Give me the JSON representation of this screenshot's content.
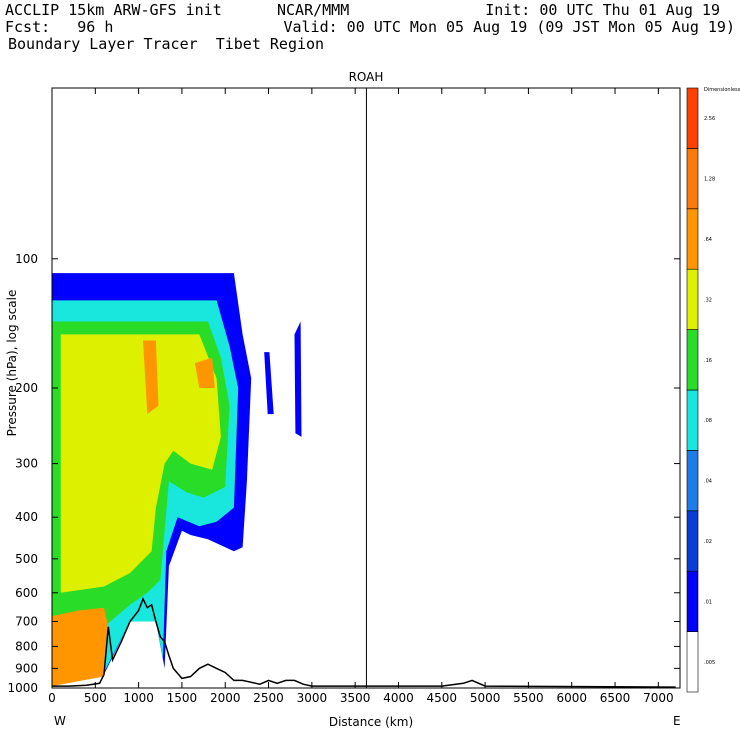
{
  "header": {
    "model": "ACCLIP 15km ARW-GFS init",
    "org": "NCAR/MMM",
    "init": "Init: 00 UTC Thu 01 Aug 19",
    "fcst": "Fcst:   96 h",
    "valid": "Valid: 00 UTC Mon 05 Aug 19 (09 JST Mon 05 Aug 19)",
    "field": "Boundary Layer Tracer  Tibet Region"
  },
  "chart_data": {
    "type": "filled-contour",
    "title": "ROAH",
    "xlabel": "Distance (km)",
    "ylabel": "Pressure (hPa), log scale",
    "x_start_label": "W",
    "x_end_label": "E",
    "xlim": [
      0,
      7250
    ],
    "ylim_hpa": [
      1000,
      40
    ],
    "y_scale": "log",
    "x_ticks": [
      "0",
      "500",
      "1000",
      "1500",
      "2000",
      "2500",
      "3000",
      "3500",
      "4000",
      "4500",
      "5000",
      "5500",
      "6000",
      "6500",
      "7000"
    ],
    "y_ticks": [
      "100",
      "200",
      "300",
      "400",
      "500",
      "600",
      "700",
      "800",
      "900",
      "1000"
    ],
    "vertical_marker_km": 3630,
    "colorbar": {
      "unit_label": "Dimensionless",
      "levels": [
        ".005",
        ".01",
        ".02",
        ".04",
        ".08",
        ".16",
        ".32",
        ".64",
        "1.28",
        "2.56"
      ],
      "colors": [
        "#ffffff",
        "#0000ff",
        "#0a3cd8",
        "#1e7ce6",
        "#19e6dc",
        "#28dc28",
        "#dcf000",
        "#ff9600",
        "#ff780a",
        "#ff4000"
      ]
    },
    "terrain_profile_km_hpa": [
      [
        0,
        990
      ],
      [
        200,
        990
      ],
      [
        400,
        985
      ],
      [
        550,
        975
      ],
      [
        600,
        930
      ],
      [
        650,
        720
      ],
      [
        700,
        860
      ],
      [
        800,
        780
      ],
      [
        900,
        700
      ],
      [
        1000,
        660
      ],
      [
        1050,
        620
      ],
      [
        1100,
        650
      ],
      [
        1150,
        640
      ],
      [
        1200,
        700
      ],
      [
        1250,
        760
      ],
      [
        1300,
        780
      ],
      [
        1350,
        840
      ],
      [
        1400,
        900
      ],
      [
        1500,
        950
      ],
      [
        1600,
        940
      ],
      [
        1700,
        900
      ],
      [
        1800,
        880
      ],
      [
        1900,
        900
      ],
      [
        2000,
        920
      ],
      [
        2100,
        960
      ],
      [
        2200,
        960
      ],
      [
        2400,
        980
      ],
      [
        2500,
        960
      ],
      [
        2600,
        975
      ],
      [
        2700,
        960
      ],
      [
        2800,
        960
      ],
      [
        2900,
        980
      ],
      [
        3000,
        990
      ],
      [
        3500,
        990
      ],
      [
        4000,
        990
      ],
      [
        4500,
        990
      ],
      [
        4750,
        975
      ],
      [
        4850,
        960
      ],
      [
        5000,
        990
      ],
      [
        7200,
        995
      ]
    ],
    "tracer_regions": [
      {
        "level": ".01",
        "polygon_km_hpa": [
          [
            0,
            108
          ],
          [
            2100,
            108
          ],
          [
            2200,
            150
          ],
          [
            2300,
            190
          ],
          [
            2250,
            330
          ],
          [
            2200,
            470
          ],
          [
            2100,
            480
          ],
          [
            1800,
            450
          ],
          [
            1600,
            440
          ],
          [
            1500,
            430
          ],
          [
            1350,
            520
          ],
          [
            1300,
            900
          ],
          [
            1200,
            700
          ],
          [
            900,
            700
          ],
          [
            600,
            930
          ],
          [
            0,
            990
          ]
        ]
      },
      {
        "level": ".01",
        "polygon_km_hpa": [
          [
            2450,
            165
          ],
          [
            2510,
            165
          ],
          [
            2560,
            230
          ],
          [
            2490,
            230
          ]
        ]
      },
      {
        "level": ".01",
        "polygon_km_hpa": [
          [
            2800,
            150
          ],
          [
            2870,
            140
          ],
          [
            2880,
            260
          ],
          [
            2810,
            255
          ]
        ]
      },
      {
        "level": ".08",
        "polygon_km_hpa": [
          [
            0,
            125
          ],
          [
            1900,
            125
          ],
          [
            2050,
            160
          ],
          [
            2150,
            200
          ],
          [
            2100,
            380
          ],
          [
            1900,
            410
          ],
          [
            1700,
            420
          ],
          [
            1450,
            400
          ],
          [
            1320,
            480
          ],
          [
            1280,
            850
          ],
          [
            1200,
            700
          ],
          [
            900,
            700
          ],
          [
            600,
            920
          ],
          [
            0,
            985
          ]
        ]
      },
      {
        "level": ".16",
        "polygon_km_hpa": [
          [
            0,
            140
          ],
          [
            1800,
            140
          ],
          [
            1950,
            170
          ],
          [
            2050,
            220
          ],
          [
            2000,
            340
          ],
          [
            1750,
            360
          ],
          [
            1550,
            350
          ],
          [
            1350,
            330
          ],
          [
            1250,
            560
          ],
          [
            1100,
            600
          ],
          [
            900,
            640
          ],
          [
            600,
            720
          ],
          [
            0,
            760
          ]
        ]
      },
      {
        "level": ".32",
        "polygon_km_hpa": [
          [
            100,
            150
          ],
          [
            1700,
            150
          ],
          [
            1900,
            190
          ],
          [
            1950,
            260
          ],
          [
            1850,
            310
          ],
          [
            1600,
            300
          ],
          [
            1400,
            280
          ],
          [
            1300,
            300
          ],
          [
            1200,
            380
          ],
          [
            1150,
            480
          ],
          [
            900,
            540
          ],
          [
            600,
            580
          ],
          [
            100,
            600
          ]
        ]
      },
      {
        "level": ".64",
        "polygon_km_hpa": [
          [
            0,
            680
          ],
          [
            300,
            660
          ],
          [
            600,
            650
          ],
          [
            650,
            720
          ],
          [
            600,
            940
          ],
          [
            0,
            990
          ]
        ]
      },
      {
        "level": ".64",
        "polygon_km_hpa": [
          [
            1050,
            155
          ],
          [
            1200,
            155
          ],
          [
            1230,
            220
          ],
          [
            1100,
            230
          ]
        ]
      },
      {
        "level": ".64",
        "polygon_km_hpa": [
          [
            1650,
            175
          ],
          [
            1850,
            170
          ],
          [
            1880,
            200
          ],
          [
            1700,
            200
          ]
        ]
      }
    ]
  }
}
